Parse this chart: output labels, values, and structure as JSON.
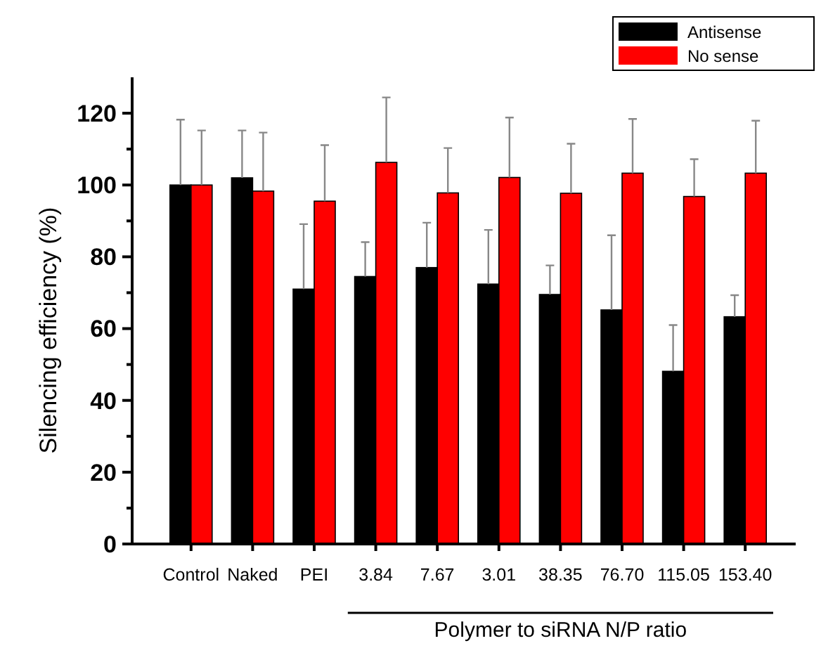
{
  "chart_data": {
    "type": "bar",
    "ylabel": "Silencing efficiency (%)",
    "xlabel": "Polymer to siRNA N/P ratio",
    "categories": [
      "Control",
      "Naked",
      "PEI",
      "3.84",
      "7.67",
      "3.01",
      "38.35",
      "76.70",
      "115.05",
      "153.40"
    ],
    "series": [
      {
        "name": "Antisense",
        "color": "#000000",
        "values": [
          100,
          102,
          71,
          74.5,
          77,
          72.4,
          69.5,
          65.2,
          48.1,
          63.3
        ],
        "errors": [
          [
            100,
            118.2
          ],
          [
            102,
            115.2
          ],
          [
            71,
            89.1
          ],
          [
            74.5,
            84.1
          ],
          [
            77,
            89.5
          ],
          [
            72.4,
            87.5
          ],
          [
            69.5,
            77.6
          ],
          [
            65.2,
            86
          ],
          [
            48.1,
            61
          ],
          [
            63.3,
            69.3
          ]
        ]
      },
      {
        "name": "No sense",
        "color": "#ff0000",
        "values": [
          100,
          98.3,
          95.5,
          106.3,
          97.8,
          102.1,
          97.7,
          103.3,
          96.8,
          103.3
        ],
        "errors": [
          [
            100,
            115.2
          ],
          [
            98.3,
            114.6
          ],
          [
            95.5,
            111.1
          ],
          [
            106.3,
            124.4
          ],
          [
            97.8,
            110.3
          ],
          [
            102.1,
            118.8
          ],
          [
            97.7,
            111.5
          ],
          [
            103.3,
            118.4
          ],
          [
            96.8,
            107.2
          ],
          [
            103.3,
            117.9
          ]
        ]
      }
    ],
    "ylim": [
      0,
      130
    ],
    "yticks": [
      0,
      {
        "value": 10,
        "label": null
      },
      20,
      {
        "value": 30,
        "label": null
      },
      40,
      {
        "value": 50,
        "label": null
      },
      60,
      {
        "value": 70,
        "label": null
      },
      80,
      {
        "value": 90,
        "label": null
      },
      100,
      {
        "value": 110,
        "label": null
      },
      120
    ],
    "grid": false,
    "legend": "top right"
  }
}
